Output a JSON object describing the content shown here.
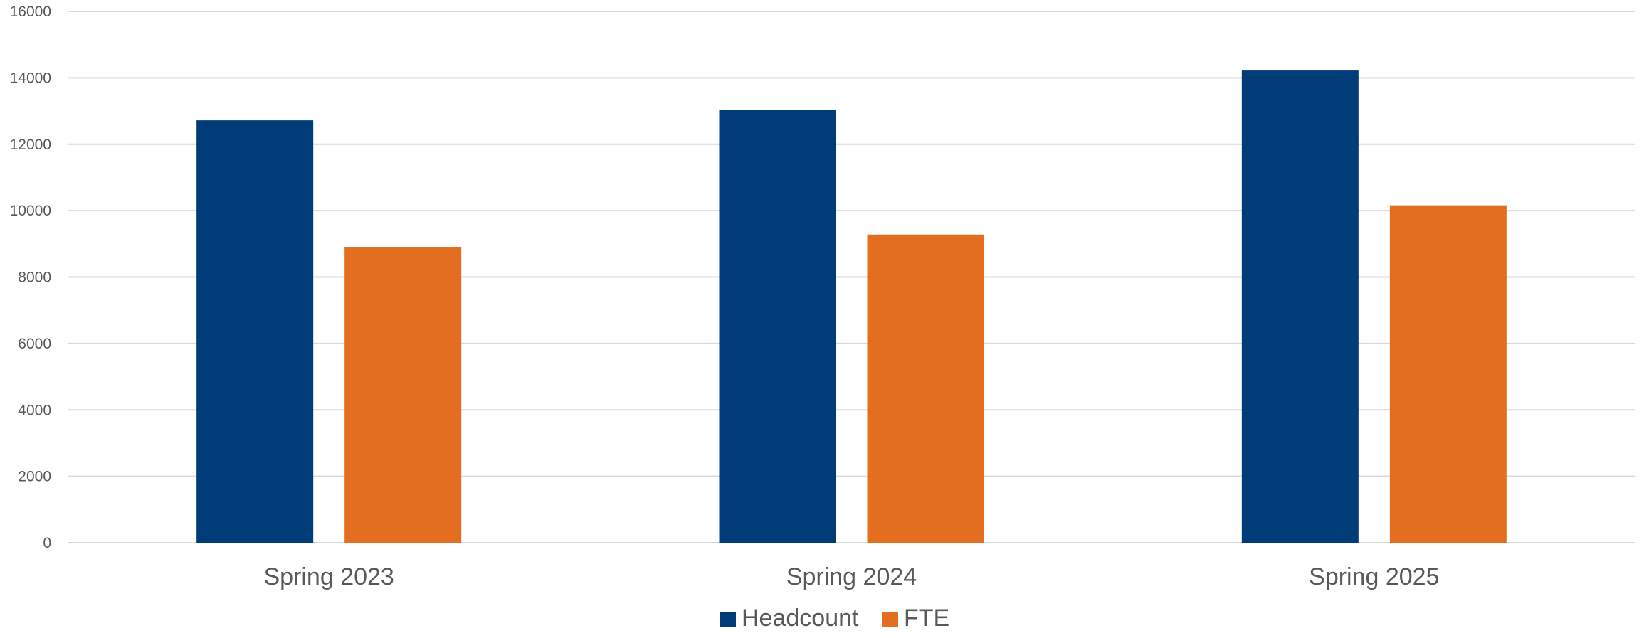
{
  "chart_data": {
    "type": "bar",
    "title": "",
    "xlabel": "",
    "ylabel": "",
    "categories": [
      "Spring 2023",
      "Spring 2024",
      "Spring 2025"
    ],
    "series": [
      {
        "name": "Headcount",
        "color": "#003c78",
        "values": [
          12720,
          13040,
          14220
        ]
      },
      {
        "name": "FTE",
        "color": "#e46e1f",
        "values": [
          8910,
          9280,
          10160
        ]
      }
    ],
    "ylim": [
      0,
      16000
    ],
    "yticks": [
      "0",
      "2000",
      "4000",
      "6000",
      "8000",
      "10000",
      "12000",
      "14000",
      "16000"
    ],
    "grid": true,
    "legend_position": "bottom"
  }
}
